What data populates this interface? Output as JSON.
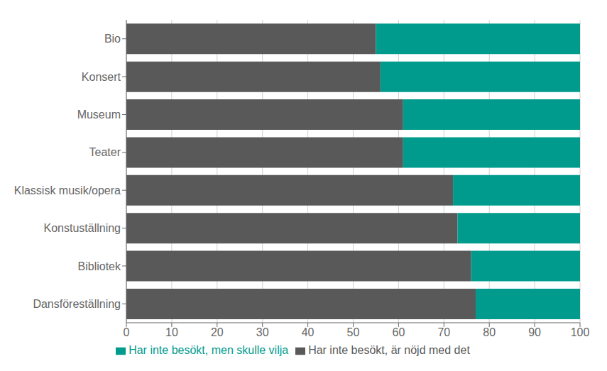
{
  "chart_data": {
    "type": "bar",
    "orientation": "horizontal",
    "stacked": true,
    "categories": [
      "Bio",
      "Konsert",
      "Museum",
      "Teater",
      "Klassisk musik/opera",
      "Konstuställning",
      "Bibliotek",
      "Dansföreställning"
    ],
    "series": [
      {
        "name": "Har inte besökt, är nöjd med det",
        "color": "#595959",
        "values": [
          55,
          56,
          61,
          61,
          72,
          73,
          76,
          77
        ]
      },
      {
        "name": "Har inte besökt, men skulle vilja",
        "color": "#009B8D",
        "values": [
          45,
          44,
          39,
          39,
          28,
          27,
          24,
          23
        ]
      }
    ],
    "xlim": [
      0,
      100
    ],
    "xticks": [
      0,
      10,
      20,
      30,
      40,
      50,
      60,
      70,
      80,
      90,
      100
    ],
    "grid": true,
    "legend": "bottom"
  }
}
